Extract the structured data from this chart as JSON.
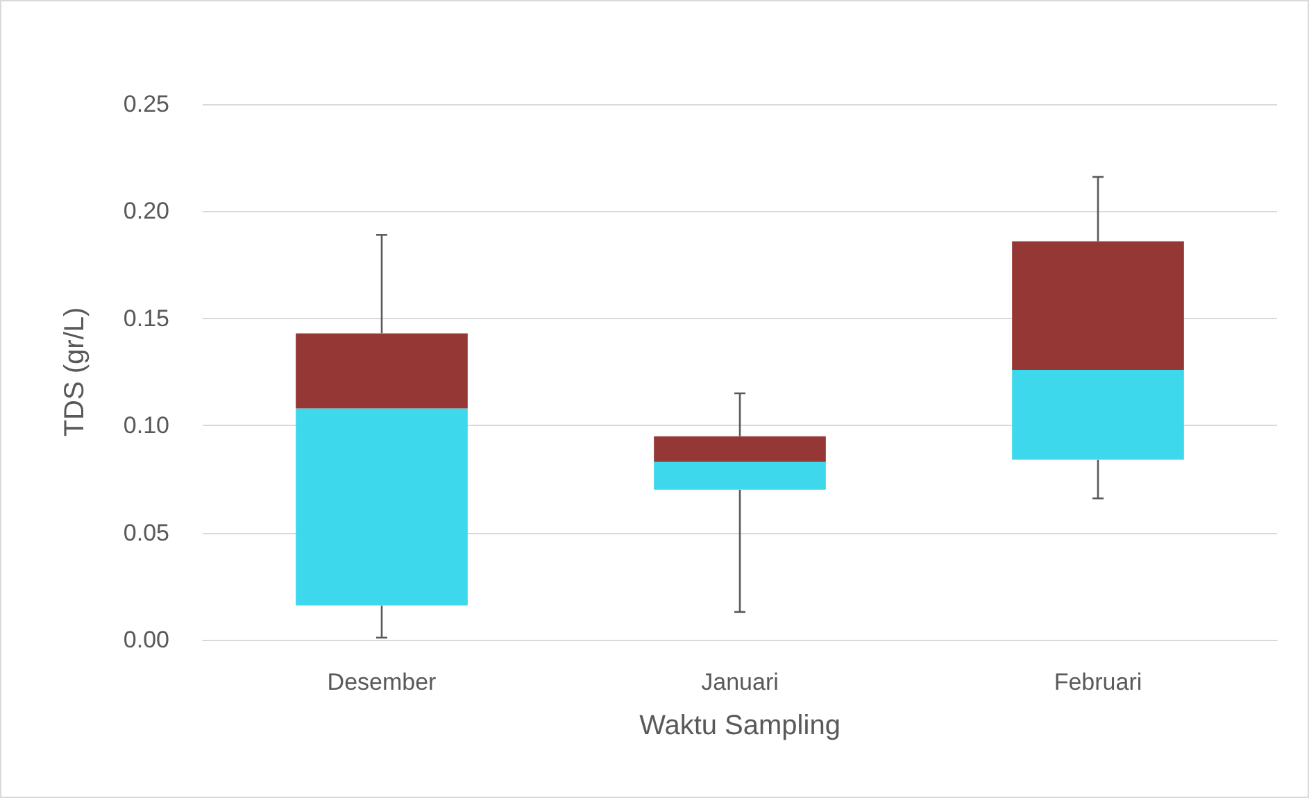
{
  "chart_data": {
    "type": "box",
    "xlabel": "Waktu Sampling",
    "ylabel": "TDS (gr/L)",
    "categories": [
      "Desember",
      "Januari",
      "Februari"
    ],
    "series": [
      {
        "color": "#953735",
        "colors": [
          "#3dd8ec",
          "#3dd8ec",
          "#3dd8ec"
        ],
        "boxes": [
          {
            "low": 0.001,
            "q1": 0.016,
            "median": 0.108,
            "q3": 0.143,
            "high": 0.189
          },
          {
            "low": 0.013,
            "q1": 0.07,
            "median": 0.083,
            "q3": 0.095,
            "high": 0.115
          },
          {
            "low": 0.066,
            "q1": 0.084,
            "median": 0.126,
            "q3": 0.186,
            "high": 0.216
          }
        ]
      }
    ],
    "ylim": [
      0,
      0.25
    ],
    "yticks": [
      {
        "value": 0,
        "label": "0.00"
      },
      0.05,
      {
        "value": 0.1,
        "label": "0.10"
      },
      0.15,
      {
        "value": 0.2,
        "label": "0.20"
      },
      0.25
    ],
    "grid": "y"
  }
}
